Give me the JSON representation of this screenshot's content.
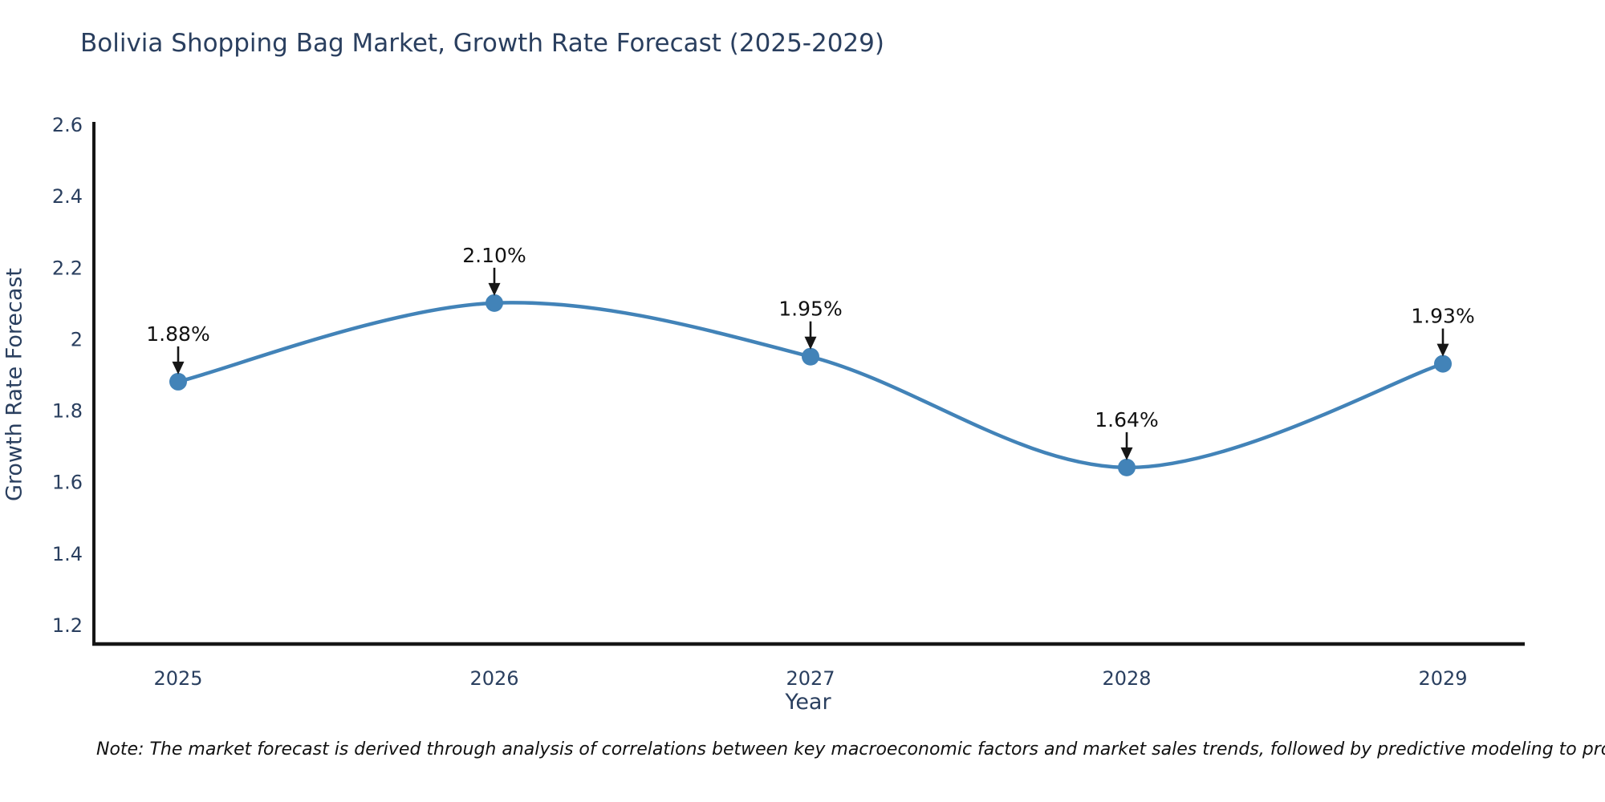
{
  "title": "Bolivia Shopping Bag Market, Growth Rate Forecast (2025-2029)",
  "note": "Note: The market forecast is derived through analysis of correlations between key macroeconomic factors and market sales trends, followed by predictive modeling to project future sales",
  "colors": {
    "line": "#4283b8",
    "marker": "#4283b8",
    "font": "#2a3f5f",
    "axis": "#161616",
    "annotation_text": "#111111",
    "arrow": "#161616",
    "background": "#ffffff"
  },
  "chart_data": {
    "type": "line",
    "title": "Bolivia Shopping Bag Market, Growth Rate Forecast (2025-2029)",
    "x": [
      2025,
      2026,
      2027,
      2028,
      2029
    ],
    "x_tick_labels": [
      "2025",
      "2026",
      "2027",
      "2028",
      "2029"
    ],
    "series": [
      {
        "name": "Growth Rate Forecast",
        "values": [
          1.88,
          2.1,
          1.95,
          1.64,
          1.93
        ],
        "point_labels": [
          "1.88%",
          "2.10%",
          "1.95%",
          "1.64%",
          "1.93%"
        ]
      }
    ],
    "xlabel": "Year",
    "ylabel": "Growth Rate Forecast",
    "yticks": [
      1.2,
      1.4,
      1.6,
      1.8,
      2,
      2.2,
      2.4,
      2.6
    ],
    "ytick_labels": [
      "1.2",
      "1.4",
      "1.6",
      "1.8",
      "2",
      "2.2",
      "2.4",
      "2.6"
    ],
    "ylim": [
      1.15,
      2.62
    ],
    "line_shape": "spline",
    "marker": "circle",
    "grid": false,
    "legend": "none",
    "annotations": "value labels with down arrows above each point"
  }
}
